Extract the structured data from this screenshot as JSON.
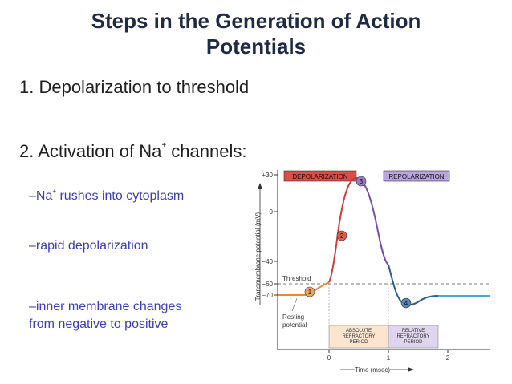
{
  "slide": {
    "title_line1": "Steps in the Generation of Action",
    "title_line2": "Potentials",
    "point1": "1.  Depolarization to threshold",
    "point2_prefix": "2.  Activation of Na",
    "point2_sup": "+",
    "point2_suffix": " channels:",
    "sub1_prefix": "–Na",
    "sub1_sup": "+",
    "sub1_suffix": " rushes into cytoplasm",
    "sub2": "–rapid depolarization",
    "sub3_line1": "–inner membrane changes",
    "sub3_line2": "from negative to positive"
  },
  "figure": {
    "header_depol": "DEPOLARIZATION",
    "header_repol": "REPOLARIZATION",
    "ylabel": "Transmembrane potential (mV)",
    "xlabel": "Time (msec)",
    "ticks_y": [
      "+30",
      "0",
      "−40",
      "−60",
      "−70"
    ],
    "ticks_x": [
      "0",
      "1",
      "2"
    ],
    "threshold_label": "Threshold",
    "resting_line1": "Resting",
    "resting_line2": "potential",
    "abs_line1": "ABSOLUTE",
    "abs_line2": "REFRACTORY",
    "abs_line3": "PERIOD",
    "rel_line1": "RELATIVE",
    "rel_line2": "REFRACTORY",
    "rel_line3": "PERIOD",
    "markers": [
      "1",
      "2",
      "3",
      "4"
    ],
    "colors": {
      "resting": "#e8883a",
      "depol": "#d23a3a",
      "repol": "#7a4ea8",
      "after": "#2f5f8a",
      "tail": "#4aa8c8",
      "abs_box": "#fbe5cf",
      "rel_box": "#ddd6ee"
    }
  }
}
